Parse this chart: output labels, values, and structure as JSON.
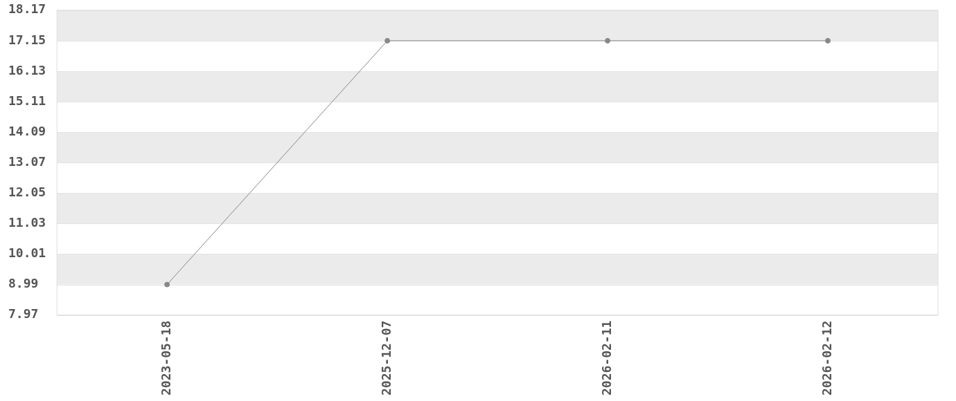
{
  "chart_data": {
    "type": "line",
    "categories": [
      "2023-05-18",
      "2025-12-07",
      "2026-02-11",
      "2026-02-12"
    ],
    "series": [
      {
        "color": "#888888",
        "values": [
          8.99,
          17.15,
          17.15,
          17.15
        ]
      }
    ],
    "ylim": [
      7.97,
      18.17
    ],
    "yticks": [
      7.97,
      8.99,
      10.01,
      11.03,
      12.05,
      13.07,
      14.09,
      15.11,
      16.13,
      17.15,
      18.17
    ],
    "grid": "y",
    "marker": "circle",
    "line_style": "solid",
    "legend": false
  }
}
